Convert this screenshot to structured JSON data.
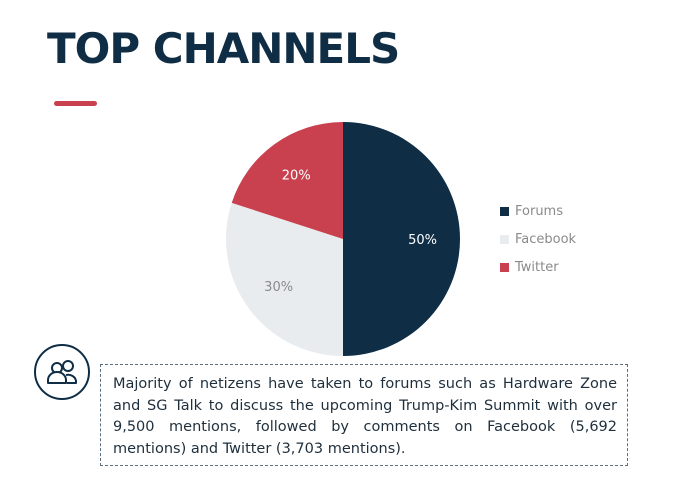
{
  "header": {
    "title": "TOP CHANNELS"
  },
  "colors": {
    "accent": "#c9414f",
    "navy": "#0f2d45",
    "light": "#e8ecef"
  },
  "chart_data": {
    "type": "pie",
    "slices": [
      {
        "label": "Forums",
        "value": 50,
        "display": "50%",
        "color": "#0f2d45",
        "label_color": "#ffffff"
      },
      {
        "label": "Facebook",
        "value": 30,
        "display": "30%",
        "color": "#e8ecef",
        "label_color": "#8a8a8a"
      },
      {
        "label": "Twitter",
        "value": 20,
        "display": "20%",
        "color": "#c9414f",
        "label_color": "#ffffff"
      }
    ],
    "legend": [
      "Forums",
      "Facebook",
      "Twitter"
    ],
    "legend_position": "right"
  },
  "callout": {
    "icon": "users-icon",
    "text": "Majority of netizens have taken to forums such as Hardware Zone and SG Talk to discuss the upcoming Trump-Kim Summit with over 9,500 mentions, followed by comments on Facebook (5,692 mentions) and Twitter (3,703 mentions)."
  }
}
